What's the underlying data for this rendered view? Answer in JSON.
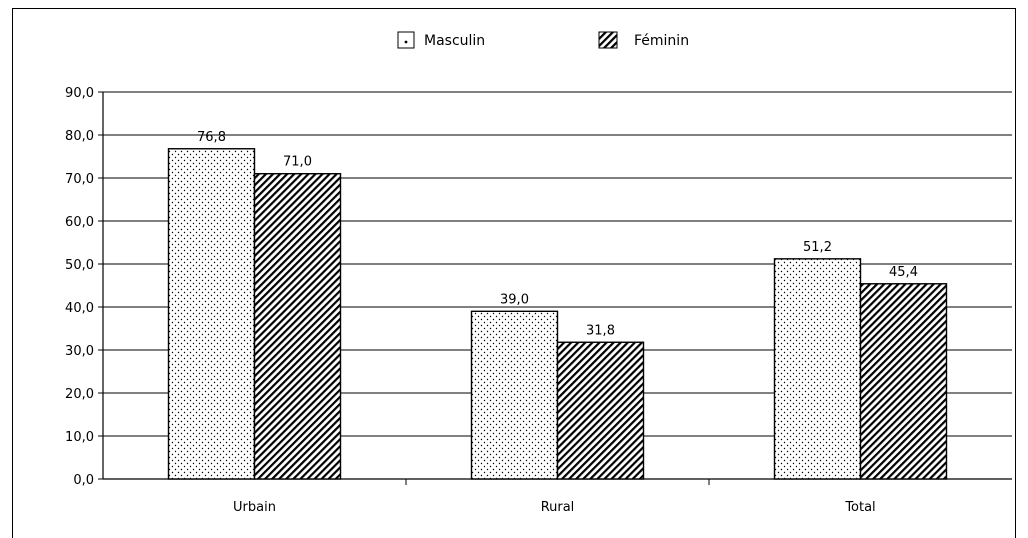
{
  "chart_data": {
    "type": "bar",
    "categories": [
      "Urbain",
      "Rural",
      "Total"
    ],
    "series": [
      {
        "name": "Masculin",
        "values": [
          76.8,
          39.0,
          51.2
        ],
        "labels": [
          "76,8",
          "39,0",
          "51,2"
        ],
        "pattern": "dots"
      },
      {
        "name": "Féminin",
        "values": [
          71.0,
          31.8,
          45.4
        ],
        "labels": [
          "71,0",
          "31,8",
          "45,4"
        ],
        "pattern": "diagonal-hatch"
      }
    ],
    "yticks": [
      {
        "value": 0,
        "label": "0,0"
      },
      {
        "value": 10,
        "label": "10,0"
      },
      {
        "value": 20,
        "label": "20,0"
      },
      {
        "value": 30,
        "label": "30,0"
      },
      {
        "value": 40,
        "label": "40,0"
      },
      {
        "value": 50,
        "label": "50,0"
      },
      {
        "value": 60,
        "label": "60,0"
      },
      {
        "value": 70,
        "label": "70,0"
      },
      {
        "value": 80,
        "label": "80,0"
      },
      {
        "value": 90,
        "label": "90,0"
      }
    ],
    "ylim": [
      0,
      90
    ],
    "grid": true,
    "legend_position": "top-center",
    "title": "",
    "xlabel": "",
    "ylabel": ""
  },
  "colors": {
    "fill": "#ffffff",
    "ink": "#000000",
    "grid": "#000000"
  }
}
